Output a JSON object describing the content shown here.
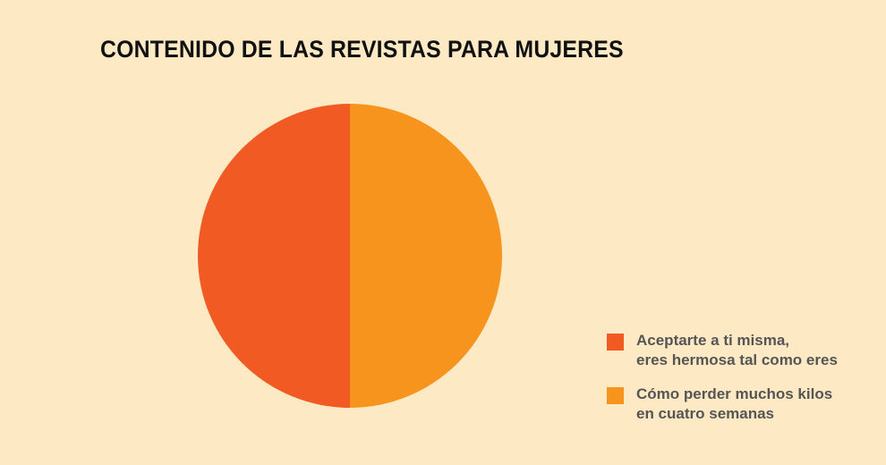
{
  "chart_data": {
    "type": "pie",
    "title": "CONTENIDO DE LAS REVISTAS PARA MUJERES",
    "slices": [
      {
        "label_lines": [
          "Aceptarte a ti misma,",
          "eres hermosa tal como eres"
        ],
        "value": 50,
        "color": "#f15a22"
      },
      {
        "label_lines": [
          "Cómo perder muchos kilos",
          "en cuatro semanas"
        ],
        "value": 50,
        "color": "#f7941d"
      }
    ],
    "start_angle_deg": 180,
    "direction": "clockwise",
    "legend_position": "bottom-right"
  }
}
